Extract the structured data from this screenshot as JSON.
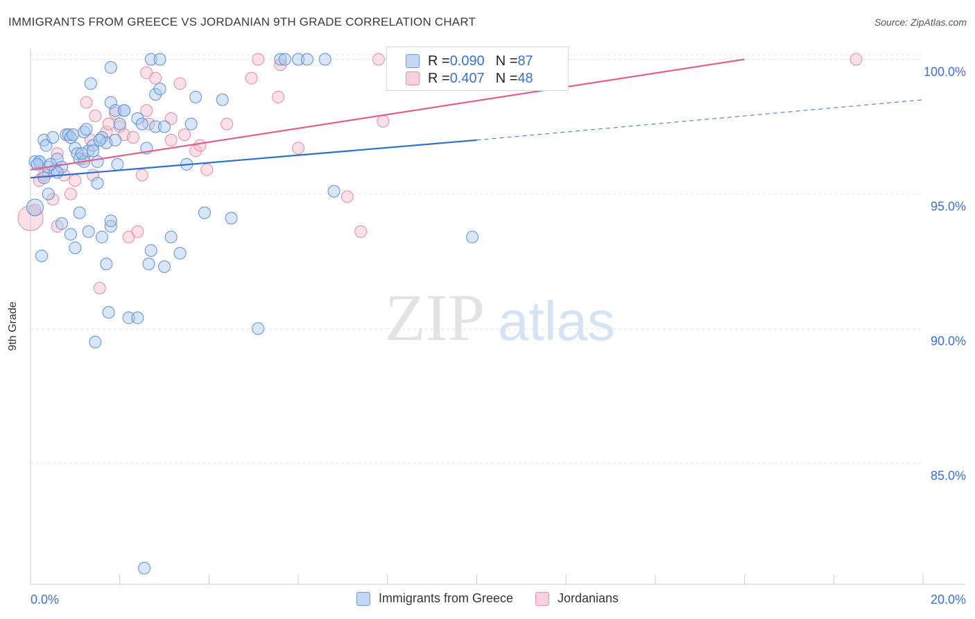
{
  "title": "IMMIGRANTS FROM GREECE VS JORDANIAN 9TH GRADE CORRELATION CHART",
  "source": "Source: ZipAtlas.com",
  "watermark": {
    "zip": "ZIP",
    "atlas": "atlas"
  },
  "legend_top": {
    "rows": [
      {
        "r_label": "R = ",
        "r_value": "0.090",
        "n_label": "N = ",
        "n_value": "87"
      },
      {
        "r_label": "R = ",
        "r_value": "0.407",
        "n_label": "N = ",
        "n_value": "48"
      }
    ]
  },
  "legend_bottom": {
    "items": [
      {
        "label": "Immigrants from Greece"
      },
      {
        "label": "Jordanians"
      }
    ]
  },
  "colors": {
    "blue_fill": "#a9c8f0",
    "blue_stroke": "#5b8fd6",
    "blue_line": "#2f6fcc",
    "pink_fill": "#f5bccd",
    "pink_stroke": "#e48aa7",
    "pink_line": "#e0608c",
    "tick_label": "#3b6fd0"
  },
  "chart_data": {
    "type": "scatter",
    "title": "IMMIGRANTS FROM GREECE VS JORDANIAN 9TH GRADE CORRELATION CHART",
    "xlabel": "",
    "ylabel": "9th Grade",
    "xlim": [
      0,
      20
    ],
    "ylim": [
      80.5,
      100.4
    ],
    "x_tick_labels": [
      "0.0%",
      "20.0%"
    ],
    "y_ticks": [
      100,
      95,
      90,
      85
    ],
    "y_tick_labels": [
      "100.0%",
      "95.0%",
      "90.0%",
      "85.0%"
    ],
    "series": [
      {
        "name": "Immigrants from Greece",
        "color": "blue",
        "R": 0.09,
        "N": 87,
        "trend": {
          "x0": 0,
          "y0": 95.6,
          "x1": 10,
          "y1": 97.0,
          "dash_to_x": 20,
          "dash_to_y": 98.5
        },
        "points": [
          [
            0.1,
            96.2
          ],
          [
            0.2,
            96.2
          ],
          [
            0.3,
            97.0
          ],
          [
            0.35,
            96.8
          ],
          [
            0.4,
            96.0
          ],
          [
            0.5,
            97.1
          ],
          [
            0.55,
            95.9
          ],
          [
            0.6,
            96.3
          ],
          [
            0.7,
            96.0
          ],
          [
            0.8,
            97.2
          ],
          [
            0.85,
            97.2
          ],
          [
            0.9,
            97.1
          ],
          [
            1.0,
            96.7
          ],
          [
            1.05,
            96.5
          ],
          [
            1.1,
            96.3
          ],
          [
            1.2,
            97.3
          ],
          [
            1.25,
            97.4
          ],
          [
            1.3,
            96.6
          ],
          [
            1.4,
            96.8
          ],
          [
            1.5,
            96.2
          ],
          [
            1.6,
            97.1
          ],
          [
            1.7,
            96.9
          ],
          [
            1.8,
            98.4
          ],
          [
            1.9,
            98.1
          ],
          [
            2.0,
            97.6
          ],
          [
            2.1,
            98.1
          ],
          [
            2.4,
            97.8
          ],
          [
            2.5,
            97.6
          ],
          [
            2.6,
            96.7
          ],
          [
            2.8,
            97.5
          ],
          [
            0.1,
            94.5
          ],
          [
            0.25,
            92.7
          ],
          [
            0.4,
            95.0
          ],
          [
            0.7,
            93.9
          ],
          [
            0.9,
            93.5
          ],
          [
            1.0,
            93.0
          ],
          [
            1.1,
            94.3
          ],
          [
            1.3,
            93.6
          ],
          [
            1.5,
            95.4
          ],
          [
            1.6,
            93.4
          ],
          [
            1.7,
            92.4
          ],
          [
            1.8,
            93.8
          ],
          [
            1.8,
            94.0
          ],
          [
            1.75,
            90.6
          ],
          [
            2.2,
            90.4
          ],
          [
            2.4,
            90.4
          ],
          [
            1.45,
            89.5
          ],
          [
            2.65,
            92.4
          ],
          [
            2.7,
            92.9
          ],
          [
            3.0,
            92.3
          ],
          [
            3.15,
            93.4
          ],
          [
            3.35,
            92.8
          ],
          [
            3.5,
            96.1
          ],
          [
            3.6,
            97.6
          ],
          [
            3.7,
            98.6
          ],
          [
            3.9,
            94.3
          ],
          [
            4.3,
            98.5
          ],
          [
            4.5,
            94.1
          ],
          [
            5.1,
            90.0
          ],
          [
            6.8,
            95.1
          ],
          [
            9.9,
            93.4
          ],
          [
            1.35,
            99.1
          ],
          [
            1.8,
            99.7
          ],
          [
            2.1,
            98.1
          ],
          [
            2.8,
            98.7
          ],
          [
            2.9,
            98.9
          ],
          [
            3.0,
            97.5
          ],
          [
            2.7,
            100.0
          ],
          [
            2.9,
            100.0
          ],
          [
            5.6,
            100.0
          ],
          [
            5.7,
            100.0
          ],
          [
            6.0,
            100.0
          ],
          [
            6.2,
            100.0
          ],
          [
            6.6,
            100.0
          ],
          [
            2.55,
            81.1
          ],
          [
            0.6,
            95.8
          ],
          [
            0.3,
            95.6
          ],
          [
            0.2,
            96.2
          ],
          [
            0.15,
            96.1
          ],
          [
            1.2,
            96.2
          ],
          [
            1.9,
            97.0
          ],
          [
            1.55,
            97.0
          ],
          [
            1.95,
            96.1
          ],
          [
            0.45,
            96.1
          ],
          [
            1.4,
            96.6
          ],
          [
            1.15,
            96.5
          ],
          [
            0.95,
            97.2
          ]
        ]
      },
      {
        "name": "Jordanians",
        "color": "pink",
        "R": 0.407,
        "N": 48,
        "trend": {
          "x0": 0,
          "y0": 95.9,
          "x1": 16,
          "y1": 100.0
        },
        "points": [
          [
            0.0,
            94.1
          ],
          [
            0.1,
            94.4
          ],
          [
            0.2,
            95.5
          ],
          [
            0.3,
            95.7
          ],
          [
            0.4,
            95.8
          ],
          [
            0.5,
            94.8
          ],
          [
            0.6,
            93.8
          ],
          [
            0.75,
            95.7
          ],
          [
            0.9,
            95.0
          ],
          [
            1.0,
            95.5
          ],
          [
            1.2,
            96.3
          ],
          [
            1.25,
            98.4
          ],
          [
            1.35,
            97.0
          ],
          [
            1.4,
            95.7
          ],
          [
            1.45,
            97.9
          ],
          [
            1.55,
            91.5
          ],
          [
            1.7,
            97.3
          ],
          [
            1.75,
            97.6
          ],
          [
            1.9,
            98.0
          ],
          [
            2.0,
            97.5
          ],
          [
            2.1,
            97.2
          ],
          [
            2.2,
            93.4
          ],
          [
            2.3,
            97.1
          ],
          [
            2.4,
            93.6
          ],
          [
            2.5,
            95.7
          ],
          [
            2.6,
            98.1
          ],
          [
            2.6,
            99.5
          ],
          [
            2.65,
            97.6
          ],
          [
            2.8,
            99.3
          ],
          [
            3.15,
            97.0
          ],
          [
            3.15,
            97.8
          ],
          [
            3.35,
            99.1
          ],
          [
            3.45,
            97.2
          ],
          [
            3.7,
            96.6
          ],
          [
            3.8,
            96.8
          ],
          [
            3.95,
            95.9
          ],
          [
            4.4,
            97.6
          ],
          [
            4.95,
            99.3
          ],
          [
            5.1,
            100.0
          ],
          [
            5.55,
            98.6
          ],
          [
            5.6,
            99.8
          ],
          [
            6.0,
            96.7
          ],
          [
            7.1,
            94.9
          ],
          [
            7.4,
            93.6
          ],
          [
            7.9,
            97.7
          ],
          [
            7.8,
            100.0
          ],
          [
            18.5,
            100.0
          ],
          [
            0.6,
            96.5
          ]
        ]
      }
    ]
  }
}
